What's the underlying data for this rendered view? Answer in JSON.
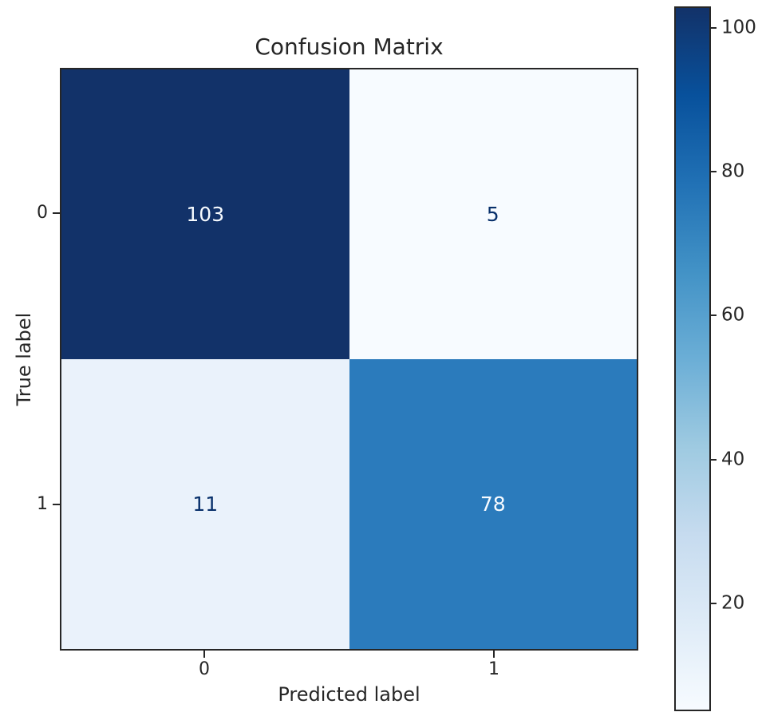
{
  "figure": {
    "background": "#ffffff",
    "spine_color": "#262626",
    "text_color": "#262626"
  },
  "chart_data": {
    "type": "heatmap",
    "title": "Confusion Matrix",
    "xlabel": "Predicted label",
    "ylabel": "True label",
    "x_tick_labels": [
      "0",
      "1"
    ],
    "y_tick_labels": [
      "0",
      "1"
    ],
    "matrix": [
      [
        103,
        5
      ],
      [
        11,
        78
      ]
    ],
    "colormap": "Blues",
    "cell_colors": [
      [
        "#123269",
        "#f7fbff"
      ],
      [
        "#eaf2fb",
        "#2b7bbc"
      ]
    ],
    "cell_text_colors": [
      [
        "#f7fbff",
        "#08306b"
      ],
      [
        "#08306b",
        "#f7fbff"
      ]
    ],
    "colorbar": {
      "vmin": 5,
      "vmax": 103,
      "ticks": [
        100,
        80,
        60,
        40,
        20
      ],
      "gradient_top_to_bottom": [
        "#123269",
        "#08519c",
        "#2171b5",
        "#4292c6",
        "#6baed6",
        "#9ecae1",
        "#c6dbef",
        "#deebf7",
        "#f7fbff"
      ]
    }
  }
}
